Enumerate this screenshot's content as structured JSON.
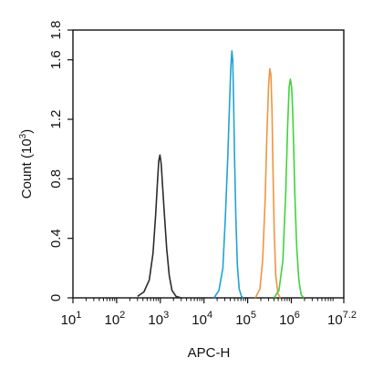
{
  "chart_data": {
    "type": "line",
    "title": "",
    "xlabel": "APC-H",
    "ylabel": "Count (10^3)",
    "x_scale": "log",
    "xlim": [
      10,
      15848932
    ],
    "ylim": [
      0,
      1.8
    ],
    "grid": false,
    "legend": "none",
    "x_ticks": [
      {
        "value": 10,
        "base": "10",
        "exp": "1"
      },
      {
        "value": 100,
        "base": "10",
        "exp": "2"
      },
      {
        "value": 1000,
        "base": "10",
        "exp": "3"
      },
      {
        "value": 10000,
        "base": "10",
        "exp": "4"
      },
      {
        "value": 100000,
        "base": "10",
        "exp": "5"
      },
      {
        "value": 1000000,
        "base": "10",
        "exp": "6"
      },
      {
        "value": 15848932,
        "base": "10",
        "exp": "7.2"
      }
    ],
    "y_ticks": [
      {
        "value": 0,
        "label": "0"
      },
      {
        "value": 0.4,
        "label": "0.4"
      },
      {
        "value": 0.8,
        "label": "0.8"
      },
      {
        "value": 1.2,
        "label": "1.2"
      },
      {
        "value": 1.6,
        "label": "1.6"
      },
      {
        "value": 1.8,
        "label": "1.8"
      }
    ],
    "series": [
      {
        "color": "#2b2b2b",
        "x": [
          300,
          420,
          560,
          680,
          780,
          860,
          920,
          980,
          1050,
          1130,
          1250,
          1400,
          1600,
          1850,
          2300,
          3000
        ],
        "y": [
          0.01,
          0.04,
          0.12,
          0.3,
          0.55,
          0.78,
          0.92,
          0.96,
          0.9,
          0.75,
          0.55,
          0.33,
          0.15,
          0.05,
          0.01,
          0.0
        ]
      },
      {
        "color": "#1fa3d6",
        "x": [
          17000,
          22000,
          27000,
          31000,
          35000,
          38500,
          41000,
          43500,
          45500,
          47500,
          50000,
          53500,
          58000,
          64000,
          72000,
          80000
        ],
        "y": [
          0.0,
          0.05,
          0.2,
          0.55,
          0.95,
          1.32,
          1.55,
          1.66,
          1.6,
          1.35,
          0.95,
          0.55,
          0.22,
          0.06,
          0.01,
          0.0
        ]
      },
      {
        "color": "#f0953f",
        "x": [
          150000,
          190000,
          220000,
          250000,
          275000,
          300000,
          320000,
          340000,
          360000,
          380000,
          405000,
          440000,
          490000,
          560000
        ],
        "y": [
          0.0,
          0.06,
          0.25,
          0.65,
          1.1,
          1.42,
          1.54,
          1.5,
          1.25,
          0.85,
          0.45,
          0.15,
          0.03,
          0.0
        ]
      },
      {
        "color": "#3fd43b",
        "x": [
          400000,
          520000,
          640000,
          740000,
          820000,
          890000,
          950000,
          1010000,
          1060000,
          1120000,
          1200000,
          1320000,
          1480000,
          1680000,
          1950000
        ],
        "y": [
          0.0,
          0.05,
          0.25,
          0.7,
          1.15,
          1.42,
          1.47,
          1.42,
          1.3,
          1.05,
          0.7,
          0.35,
          0.12,
          0.02,
          0.0
        ]
      }
    ]
  }
}
